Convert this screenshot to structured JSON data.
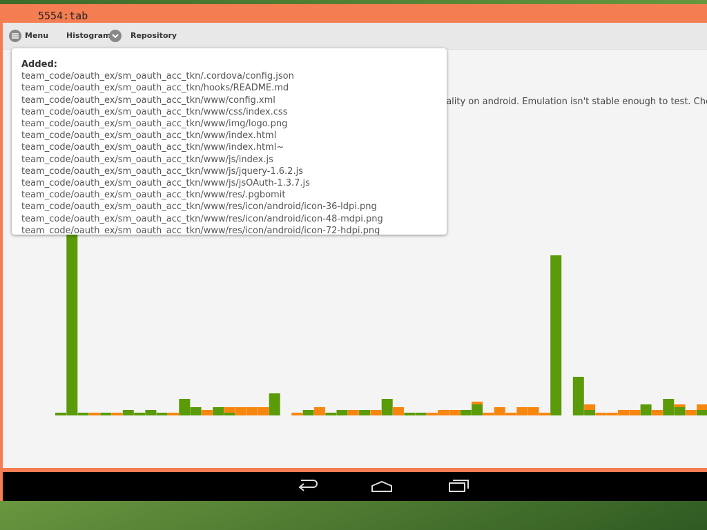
{
  "window": {
    "title": "5554:tab"
  },
  "toolbar": {
    "items": [
      "Menu",
      "Histogram",
      "Repository"
    ]
  },
  "content": {
    "text": "onality on android. Emulation isn't stable enough to test. Check"
  },
  "popup": {
    "heading": "Added:",
    "files": [
      "team_code/oauth_ex/sm_oauth_acc_tkn/.cordova/config.json",
      "team_code/oauth_ex/sm_oauth_acc_tkn/hooks/README.md",
      "team_code/oauth_ex/sm_oauth_acc_tkn/www/config.xml",
      "team_code/oauth_ex/sm_oauth_acc_tkn/www/css/index.css",
      "team_code/oauth_ex/sm_oauth_acc_tkn/www/img/logo.png",
      "team_code/oauth_ex/sm_oauth_acc_tkn/www/index.html",
      "team_code/oauth_ex/sm_oauth_acc_tkn/www/index.html~",
      "team_code/oauth_ex/sm_oauth_acc_tkn/www/js/index.js",
      "team_code/oauth_ex/sm_oauth_acc_tkn/www/js/jquery-1.6.2.js",
      "team_code/oauth_ex/sm_oauth_acc_tkn/www/js/jsOAuth-1.3.7.js",
      "team_code/oauth_ex/sm_oauth_acc_tkn/www/res/.pgbomit",
      "team_code/oauth_ex/sm_oauth_acc_tkn/www/res/icon/android/icon-36-ldpi.png",
      "team_code/oauth_ex/sm_oauth_acc_tkn/www/res/icon/android/icon-48-mdpi.png",
      "team_code/oauth_ex/sm_oauth_acc_tkn/www/res/icon/android/icon-72-hdpi.png"
    ]
  },
  "histogram": {
    "series": [
      {
        "color": "#5b9a08",
        "values": [
          1,
          70,
          1,
          0,
          1,
          0,
          2,
          1,
          2,
          1,
          0,
          6,
          3,
          0,
          3,
          1,
          0,
          0,
          0,
          8,
          null,
          0,
          2,
          0,
          1,
          2,
          0,
          2,
          0,
          6,
          0,
          1,
          1,
          0,
          0,
          0,
          2,
          4,
          0,
          0,
          0,
          0,
          0,
          0,
          58,
          null,
          14,
          2,
          0,
          0,
          0,
          0,
          4,
          0,
          6,
          3,
          0,
          2
        ]
      },
      {
        "color": "#f7860f",
        "values": [
          0,
          0,
          0,
          1,
          0,
          1,
          0,
          0,
          0,
          0,
          1,
          0,
          0,
          2,
          0,
          2,
          3,
          3,
          3,
          0,
          null,
          1,
          0,
          3,
          0,
          0,
          2,
          0,
          2,
          0,
          3,
          0,
          0,
          1,
          2,
          2,
          0,
          1,
          1,
          3,
          1,
          3,
          3,
          1,
          0,
          null,
          0,
          2,
          1,
          1,
          2,
          2,
          0,
          2,
          0,
          1,
          2,
          2
        ]
      }
    ]
  }
}
